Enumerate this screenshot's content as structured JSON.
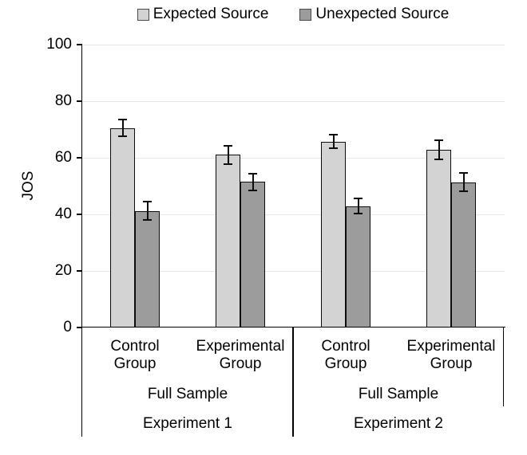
{
  "colors": {
    "expected_fill": "#d3d3d3",
    "unexpected_fill": "#9c9c9c",
    "bar_border": "#0d0d0d",
    "gridline": "#e7e7e7",
    "axis": "#000000",
    "error_bar": "#0d0d0d",
    "text": "#000000",
    "legend_swatch_border": "#4a4a4a"
  },
  "legend": {
    "items": [
      {
        "label": "Expected Source",
        "color_key": "expected_fill"
      },
      {
        "label": "Unexpected Source",
        "color_key": "unexpected_fill"
      }
    ]
  },
  "chart_data": {
    "type": "bar",
    "title": "",
    "ylabel": "JOS",
    "xlabel": "",
    "ylim": [
      0,
      100
    ],
    "yticks": [
      0,
      20,
      40,
      60,
      80,
      100
    ],
    "grid": "horizontal",
    "legend_position": "top-center",
    "error_bars": true,
    "categories": [
      "Experiment 1 | Full Sample | Control Group",
      "Experiment 1 | Full Sample | Experimental Group",
      "Experiment 2 | Full Sample | Control Group",
      "Experiment 2 | Full Sample | Experimental Group"
    ],
    "x_axis_levels": [
      {
        "name": "group",
        "labels": [
          "Control Group",
          "Experimental Group",
          "Control Group",
          "Experimental Group"
        ],
        "spans": [
          1,
          1,
          1,
          1
        ]
      },
      {
        "name": "sample",
        "labels": [
          "Full Sample",
          "Full Sample"
        ],
        "spans": [
          2,
          2
        ]
      },
      {
        "name": "experiment",
        "labels": [
          "Experiment 1",
          "Experiment 2"
        ],
        "spans": [
          2,
          2
        ]
      }
    ],
    "series": [
      {
        "name": "Expected Source",
        "color_key": "expected_fill",
        "values": [
          70.5,
          61.0,
          65.7,
          62.8
        ],
        "errors": [
          3.0,
          3.3,
          2.4,
          3.3
        ]
      },
      {
        "name": "Unexpected Source",
        "color_key": "unexpected_fill",
        "values": [
          41.2,
          51.5,
          42.9,
          51.4
        ],
        "errors": [
          3.3,
          3.0,
          2.6,
          3.3
        ]
      }
    ]
  }
}
